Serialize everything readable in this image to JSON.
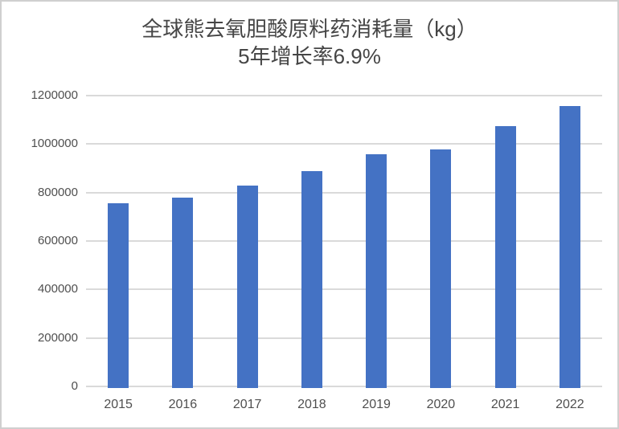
{
  "chart_title": "全球熊去氧胆酸原料药消耗量（kg）",
  "chart_subtitle": "5年增长率6.9%",
  "chart_data": {
    "type": "bar",
    "title": "全球熊去氧胆酸原料药消耗量（kg）",
    "subtitle": "5年增长率6.9%",
    "categories": [
      "2015",
      "2016",
      "2017",
      "2018",
      "2019",
      "2020",
      "2021",
      "2022"
    ],
    "values": [
      755000,
      778000,
      830000,
      890000,
      958000,
      977000,
      1073000,
      1157000
    ],
    "xlabel": "",
    "ylabel": "",
    "ylim": [
      0,
      1200000
    ],
    "yticks": [
      0,
      200000,
      400000,
      600000,
      800000,
      1000000,
      1200000
    ],
    "ytick_labels": [
      "0",
      "200000",
      "400000",
      "600000",
      "800000",
      "1000000",
      "1200000"
    ],
    "grid": true,
    "legend": "none",
    "colors": {
      "bar": "#4472c4",
      "gridline": "#dadada",
      "title_text": "#454545",
      "axis_text": "#4f4f4f",
      "background": "#ffffff",
      "frame_border": "#cfcfcf"
    }
  }
}
